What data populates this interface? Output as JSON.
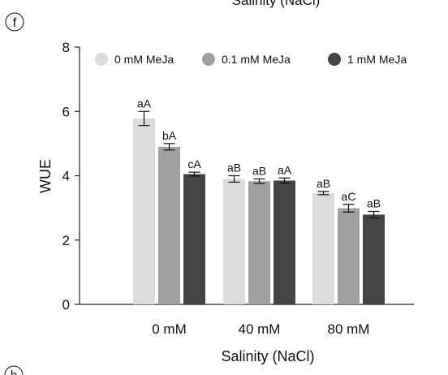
{
  "panel_label": "f",
  "cropped_top_title": "Salinity (NaCl)",
  "cropped_bottom_label": "b",
  "colors": {
    "s0": "#dcdcdc",
    "s1": "#a0a0a0",
    "s2": "#444444",
    "axis": "#222222"
  },
  "chart_data": {
    "type": "bar",
    "xlabel": "Salinity (NaCl)",
    "ylabel": "WUE",
    "ylim": [
      0,
      8
    ],
    "yticks": [
      "0",
      "2",
      "4",
      "6",
      "8"
    ],
    "categories": [
      "0 mM",
      "40 mM",
      "80 mM"
    ],
    "legend_position": "top",
    "grid": false,
    "series": [
      {
        "name": "0 mM MeJa",
        "values": [
          5.78,
          3.9,
          3.46
        ],
        "errors": [
          0.22,
          0.1,
          0.05
        ],
        "labels": [
          "aA",
          "aB",
          "aB"
        ]
      },
      {
        "name": "0.1 mM MeJa",
        "values": [
          4.9,
          3.83,
          2.99
        ],
        "errors": [
          0.1,
          0.07,
          0.12
        ],
        "labels": [
          "bA",
          "aB",
          "aC"
        ]
      },
      {
        "name": "1 mM MeJa",
        "values": [
          4.05,
          3.85,
          2.79
        ],
        "errors": [
          0.06,
          0.08,
          0.1
        ],
        "labels": [
          "cA",
          "aA",
          "aB"
        ]
      }
    ]
  }
}
